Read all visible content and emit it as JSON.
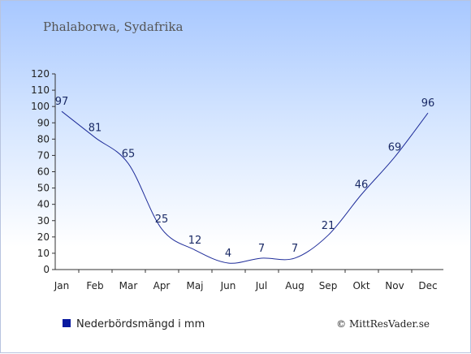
{
  "chart_data": {
    "type": "line",
    "title": "Phalaborwa, Sydafrika",
    "categories": [
      "Jan",
      "Feb",
      "Mar",
      "Apr",
      "Maj",
      "Jun",
      "Jul",
      "Aug",
      "Sep",
      "Okt",
      "Nov",
      "Dec"
    ],
    "series": [
      {
        "name": "Nederbördsmängd i mm",
        "values": [
          97,
          81,
          65,
          25,
          12,
          4,
          7,
          7,
          21,
          46,
          69,
          96
        ]
      }
    ],
    "ylim": [
      0,
      120
    ],
    "yticks": [
      0,
      10,
      20,
      30,
      40,
      50,
      60,
      70,
      80,
      90,
      100,
      110,
      120
    ],
    "grid": false,
    "legend_position": "bottom-left",
    "line_color": "#1f2d9a",
    "legend_color": "#0a1aa0"
  },
  "credit": "© MittResVader.se"
}
